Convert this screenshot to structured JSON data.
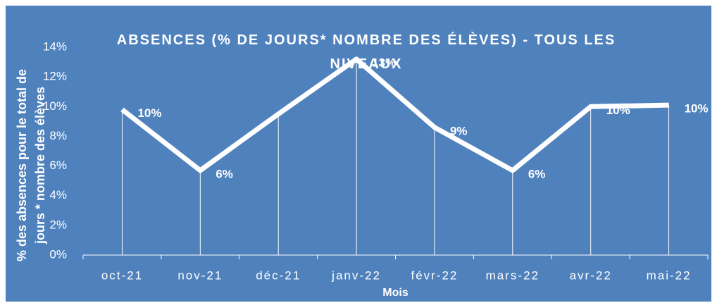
{
  "chart_data": {
    "type": "line",
    "title": "ABSENCES (% DE JOURS* NOMBRE DES ÉLÈVES) - TOUS LES NIVEAUX",
    "y_label": [
      "% des absences pour le total de",
      "jours * nombre des élèves"
    ],
    "x_label": "Mois",
    "categories": [
      "oct-21",
      "nov-21",
      "déc-21",
      "janv-22",
      "févr-22",
      "mars-22",
      "avr-22",
      "mai-22"
    ],
    "series": [
      {
        "name": "Absences",
        "color": "#ffffff",
        "values": [
          9.8,
          5.7,
          9.5,
          13.2,
          8.6,
          5.7,
          10.0,
          10.1
        ],
        "value_labels": [
          "10%",
          "6%",
          null,
          "13%",
          "9%",
          "6%",
          "10%",
          "10%"
        ]
      }
    ],
    "ylim": [
      0,
      14
    ],
    "yticks": [
      {
        "value": 0,
        "label": "0%"
      },
      {
        "value": 2,
        "label": "2%"
      },
      {
        "value": 4,
        "label": "4%"
      },
      {
        "value": 6,
        "label": "6%"
      },
      {
        "value": 8,
        "label": "8%"
      },
      {
        "value": 10,
        "label": "10%"
      },
      {
        "value": 12,
        "label": "12%"
      },
      {
        "value": 14,
        "label": "14%"
      }
    ],
    "background": "#4f81bd"
  }
}
